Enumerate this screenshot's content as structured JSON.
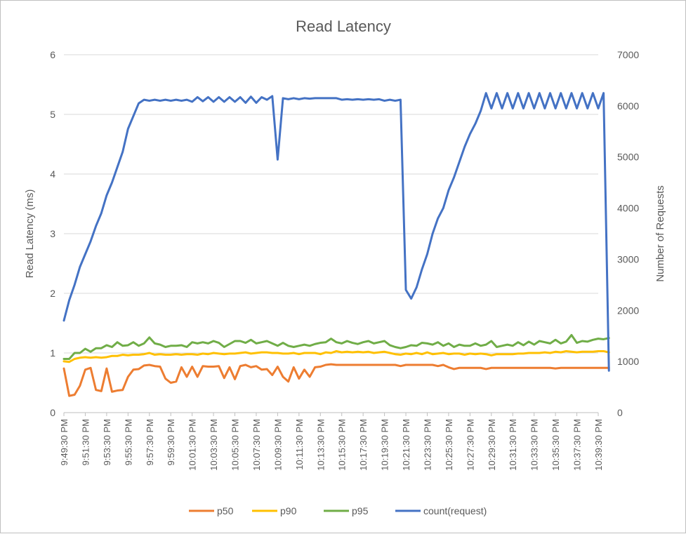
{
  "chart_data": {
    "type": "line",
    "title": "Read Latency",
    "ylabel": "Read Latency (ms)",
    "y2label": "Number of Requests",
    "ylim": [
      0,
      6
    ],
    "y2lim": [
      0,
      7000
    ],
    "yticks": [
      "0",
      "1",
      "2",
      "3",
      "4",
      "5",
      "6"
    ],
    "y2ticks": [
      "0",
      "1000",
      "2000",
      "3000",
      "4000",
      "5000",
      "6000",
      "7000"
    ],
    "grid": true,
    "legend_position": "bottom",
    "xtick_labels": [
      "9:49:30 PM",
      "9:51:30 PM",
      "9:53:30 PM",
      "9:55:30 PM",
      "9:57:30 PM",
      "9:59:30 PM",
      "10:01:30 PM",
      "10:03:30 PM",
      "10:05:30 PM",
      "10:07:30 PM",
      "10:09:30 PM",
      "10:11:30 PM",
      "10:13:30 PM",
      "10:15:30 PM",
      "10:17:30 PM",
      "10:19:30 PM",
      "10:21:30 PM",
      "10:23:30 PM",
      "10:25:30 PM",
      "10:27:30 PM",
      "10:29:30 PM",
      "10:31:30 PM",
      "10:33:30 PM",
      "10:35:30 PM",
      "10:37:30 PM",
      "10:39:30 PM"
    ],
    "points_per_label_interval": 4,
    "series": [
      {
        "name": "p50",
        "color": "#ED7D31",
        "axis": "left",
        "values": [
          0.74,
          0.28,
          0.3,
          0.45,
          0.72,
          0.75,
          0.38,
          0.36,
          0.74,
          0.35,
          0.37,
          0.38,
          0.6,
          0.72,
          0.73,
          0.79,
          0.8,
          0.78,
          0.77,
          0.57,
          0.5,
          0.52,
          0.76,
          0.6,
          0.77,
          0.6,
          0.78,
          0.77,
          0.77,
          0.78,
          0.58,
          0.76,
          0.56,
          0.78,
          0.8,
          0.76,
          0.78,
          0.72,
          0.73,
          0.63,
          0.77,
          0.6,
          0.52,
          0.76,
          0.57,
          0.72,
          0.6,
          0.76,
          0.77,
          0.8,
          0.81,
          0.8,
          0.8,
          0.8,
          0.8,
          0.8,
          0.8,
          0.8,
          0.8,
          0.8,
          0.8,
          0.8,
          0.8,
          0.78,
          0.8,
          0.8,
          0.8,
          0.8,
          0.8,
          0.8,
          0.78,
          0.8,
          0.76,
          0.73,
          0.75,
          0.75,
          0.75,
          0.75,
          0.75,
          0.73,
          0.75,
          0.75,
          0.75,
          0.75,
          0.75,
          0.75,
          0.75,
          0.75,
          0.75,
          0.75,
          0.75,
          0.75,
          0.74,
          0.75,
          0.75,
          0.75,
          0.75,
          0.75,
          0.75,
          0.75,
          0.75,
          0.75,
          0.75
        ]
      },
      {
        "name": "p90",
        "color": "#FFC000",
        "axis": "left",
        "values": [
          0.86,
          0.85,
          0.9,
          0.92,
          0.93,
          0.92,
          0.93,
          0.92,
          0.93,
          0.95,
          0.95,
          0.97,
          0.96,
          0.97,
          0.97,
          0.98,
          1.0,
          0.97,
          0.98,
          0.97,
          0.97,
          0.98,
          0.97,
          0.98,
          0.98,
          0.97,
          0.99,
          0.98,
          1.0,
          0.99,
          0.98,
          0.99,
          0.99,
          1.0,
          1.01,
          0.99,
          1.0,
          1.01,
          1.01,
          1.0,
          1.0,
          0.99,
          0.99,
          1.0,
          0.98,
          1.0,
          1.0,
          1.0,
          0.98,
          1.01,
          1.0,
          1.03,
          1.01,
          1.02,
          1.01,
          1.02,
          1.01,
          1.02,
          1.0,
          1.01,
          1.02,
          1.0,
          0.98,
          0.97,
          0.99,
          0.98,
          1.0,
          0.98,
          1.01,
          0.98,
          0.99,
          1.0,
          0.98,
          0.99,
          0.99,
          0.97,
          0.99,
          0.98,
          0.99,
          0.98,
          0.96,
          0.98,
          0.98,
          0.98,
          0.98,
          0.99,
          0.99,
          1.0,
          1.0,
          1.0,
          1.01,
          1.0,
          1.02,
          1.01,
          1.03,
          1.02,
          1.01,
          1.02,
          1.02,
          1.02,
          1.03,
          1.03,
          1.01
        ]
      },
      {
        "name": "p95",
        "color": "#70AD47",
        "axis": "left",
        "values": [
          0.9,
          0.9,
          1.0,
          1.0,
          1.07,
          1.02,
          1.08,
          1.08,
          1.13,
          1.1,
          1.18,
          1.12,
          1.13,
          1.18,
          1.12,
          1.16,
          1.26,
          1.16,
          1.14,
          1.1,
          1.12,
          1.12,
          1.13,
          1.1,
          1.18,
          1.16,
          1.18,
          1.16,
          1.2,
          1.17,
          1.1,
          1.15,
          1.2,
          1.2,
          1.17,
          1.22,
          1.16,
          1.18,
          1.2,
          1.16,
          1.12,
          1.17,
          1.12,
          1.1,
          1.12,
          1.14,
          1.12,
          1.15,
          1.17,
          1.18,
          1.24,
          1.18,
          1.16,
          1.2,
          1.17,
          1.15,
          1.18,
          1.2,
          1.16,
          1.18,
          1.2,
          1.13,
          1.1,
          1.08,
          1.1,
          1.13,
          1.12,
          1.17,
          1.16,
          1.14,
          1.18,
          1.12,
          1.16,
          1.1,
          1.14,
          1.12,
          1.12,
          1.16,
          1.12,
          1.14,
          1.2,
          1.1,
          1.12,
          1.14,
          1.12,
          1.18,
          1.13,
          1.19,
          1.14,
          1.2,
          1.18,
          1.16,
          1.22,
          1.16,
          1.19,
          1.3,
          1.17,
          1.2,
          1.19,
          1.22,
          1.24,
          1.23,
          1.25
        ]
      },
      {
        "name": "count(request)",
        "color": "#4472C4",
        "axis": "right",
        "values": [
          1800,
          2200,
          2500,
          2850,
          3100,
          3350,
          3650,
          3900,
          4250,
          4500,
          4800,
          5100,
          5550,
          5800,
          6050,
          6120,
          6100,
          6120,
          6100,
          6120,
          6100,
          6120,
          6100,
          6120,
          6080,
          6170,
          6090,
          6170,
          6080,
          6170,
          6080,
          6170,
          6080,
          6170,
          6060,
          6180,
          6060,
          6170,
          6120,
          6190,
          4950,
          6150,
          6130,
          6150,
          6130,
          6150,
          6140,
          6150,
          6150,
          6150,
          6150,
          6150,
          6120,
          6130,
          6120,
          6130,
          6120,
          6130,
          6120,
          6130,
          6100,
          6120,
          6100,
          6120,
          2400,
          2230,
          2450,
          2800,
          3100,
          3500,
          3800,
          4000,
          4350,
          4600,
          4900,
          5200,
          5450,
          5650,
          5900,
          6250,
          5950,
          6250,
          5950,
          6250,
          5950,
          6250,
          5950,
          6250,
          5950,
          6250,
          5950,
          6250,
          5950,
          6250,
          5950,
          6250,
          5950,
          6250,
          5950,
          6250,
          5950,
          6250,
          820
        ]
      }
    ]
  }
}
